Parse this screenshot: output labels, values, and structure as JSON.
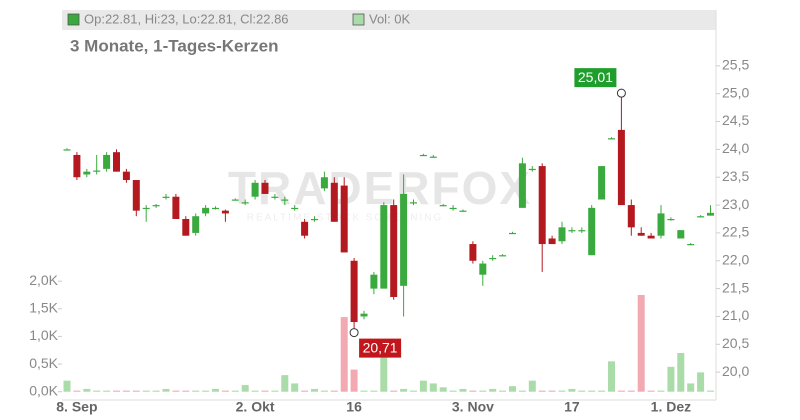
{
  "chart_data": {
    "type": "candlestick",
    "title": "3 Monate, 1-Tages-Kerzen",
    "legend": {
      "price": "Op:22.81, Hi:23, Lo:22.81, Cl:22.86",
      "volume": "Vol: 0K"
    },
    "watermark": "TRADERFOX",
    "watermark_sub": "REALTIME STOCK SCREENING",
    "categories": [
      null,
      "8. Sep",
      null,
      null,
      null,
      null,
      null,
      null,
      null,
      null,
      null,
      null,
      null,
      null,
      null,
      null,
      null,
      null,
      null,
      "2. Okt",
      null,
      null,
      null,
      null,
      null,
      null,
      null,
      null,
      null,
      "16",
      null,
      null,
      null,
      null,
      null,
      null,
      null,
      null,
      null,
      null,
      null,
      "3. Nov",
      null,
      null,
      null,
      null,
      null,
      null,
      null,
      null,
      null,
      "17",
      null,
      null,
      null,
      null,
      null,
      null,
      null,
      null,
      null,
      "1. Dez",
      null,
      null,
      null,
      null
    ],
    "open": [
      24.0,
      23.9,
      23.55,
      23.6,
      23.65,
      23.95,
      23.6,
      23.45,
      22.95,
      23.0,
      23.15,
      23.15,
      22.75,
      22.5,
      22.85,
      22.95,
      22.9,
      23.1,
      23.05,
      23.15,
      23.4,
      23.15,
      23.1,
      22.95,
      22.7,
      22.75,
      23.3,
      23.4,
      23.35,
      22.0,
      21.0,
      21.5,
      21.5,
      23.0,
      21.55,
      23.05,
      23.9,
      23.87,
      23.0,
      22.95,
      22.9,
      22.3,
      21.75,
      22.05,
      22.1,
      22.5,
      22.95,
      23.65,
      23.7,
      22.4,
      22.35,
      22.55,
      22.55,
      22.1,
      23.1,
      24.2,
      24.35,
      23.0,
      22.5,
      22.45,
      22.45,
      22.75,
      22.4,
      22.3,
      22.8,
      22.81
    ],
    "high": [
      24.02,
      23.95,
      23.65,
      23.9,
      23.95,
      24.0,
      23.65,
      23.45,
      23.0,
      23.02,
      23.2,
      23.2,
      22.8,
      22.85,
      23.0,
      22.98,
      22.92,
      23.12,
      23.1,
      23.45,
      23.45,
      23.2,
      23.15,
      23.0,
      22.75,
      22.8,
      23.6,
      23.5,
      23.5,
      22.05,
      21.1,
      21.8,
      23.05,
      23.1,
      23.55,
      23.1,
      23.92,
      23.9,
      23.02,
      23.0,
      22.92,
      22.35,
      22.0,
      22.1,
      22.12,
      22.52,
      23.85,
      23.7,
      23.75,
      22.45,
      22.7,
      22.6,
      22.6,
      23.0,
      23.7,
      24.22,
      25.01,
      23.1,
      22.6,
      22.5,
      23.0,
      22.78,
      22.55,
      22.32,
      22.82,
      23.0
    ],
    "low": [
      23.98,
      23.45,
      23.5,
      23.55,
      23.6,
      23.6,
      23.4,
      22.8,
      22.7,
      22.95,
      23.1,
      22.75,
      22.45,
      22.45,
      22.8,
      22.92,
      22.7,
      23.08,
      23.0,
      23.1,
      23.2,
      23.1,
      23.0,
      22.9,
      22.4,
      22.7,
      23.25,
      22.7,
      22.15,
      20.71,
      20.95,
      21.4,
      21.5,
      21.3,
      21.0,
      23.0,
      23.88,
      23.85,
      22.98,
      22.9,
      22.88,
      21.95,
      21.55,
      22.0,
      22.08,
      22.48,
      22.95,
      23.6,
      21.8,
      22.3,
      22.3,
      22.5,
      22.5,
      22.1,
      23.1,
      24.18,
      23.0,
      22.45,
      22.45,
      22.4,
      22.4,
      22.72,
      22.4,
      22.28,
      22.78,
      22.81
    ],
    "close": [
      24.0,
      23.5,
      23.6,
      23.62,
      23.9,
      23.6,
      23.45,
      22.9,
      22.95,
      23.0,
      23.15,
      22.75,
      22.45,
      22.8,
      22.95,
      22.95,
      22.85,
      23.1,
      23.05,
      23.4,
      23.2,
      23.15,
      23.1,
      22.95,
      22.45,
      22.75,
      23.5,
      22.7,
      22.15,
      20.9,
      21.05,
      21.75,
      23.0,
      21.35,
      23.2,
      23.05,
      23.9,
      23.87,
      23.0,
      22.95,
      22.9,
      22.0,
      21.95,
      22.05,
      22.1,
      22.5,
      23.75,
      23.65,
      22.3,
      22.3,
      22.6,
      22.55,
      22.55,
      22.95,
      23.7,
      24.2,
      23.0,
      22.6,
      22.45,
      22.4,
      22.85,
      22.75,
      22.55,
      22.3,
      22.8,
      22.86
    ],
    "volume": [
      0.2,
      0.02,
      0.05,
      0.02,
      0.02,
      0.02,
      0.02,
      0.02,
      0.02,
      0.02,
      0.05,
      0.02,
      0.02,
      0.02,
      0.02,
      0.05,
      0.02,
      0.02,
      0.12,
      0.02,
      0.02,
      0.02,
      0.3,
      0.15,
      0.02,
      0.05,
      0.02,
      0.02,
      1.35,
      0.4,
      0.02,
      0.02,
      0.65,
      0.02,
      0.05,
      0.02,
      0.2,
      0.15,
      0.08,
      0.02,
      0.05,
      0.02,
      0.02,
      0.05,
      0.02,
      0.1,
      0.02,
      0.2,
      0.02,
      0.02,
      0.02,
      0.05,
      0.02,
      0.02,
      0.02,
      0.55,
      0.02,
      0.02,
      1.75,
      0.02,
      0.02,
      0.45,
      0.7,
      0.15,
      0.35,
      0.02
    ],
    "annotations": [
      {
        "text": "25,01",
        "value": 25.01,
        "color": "#1f9e2c"
      },
      {
        "text": "20,71",
        "value": 20.71,
        "color": "#c0161c"
      }
    ],
    "ylim": [
      19.5,
      26.0
    ],
    "yticks": [
      {
        "value": 20.0,
        "label": "20,0"
      },
      {
        "value": 20.5,
        "label": "20,5"
      },
      {
        "value": 21.0,
        "label": "21,0"
      },
      {
        "value": 21.5,
        "label": "21,5"
      },
      {
        "value": 22.0,
        "label": "22,0"
      },
      {
        "value": 22.5,
        "label": "22,5"
      },
      {
        "value": 23.0,
        "label": "23,0"
      },
      {
        "value": 23.5,
        "label": "23,5"
      },
      {
        "value": 24.0,
        "label": "24,0"
      },
      {
        "value": 24.5,
        "label": "24,5"
      },
      {
        "value": 25.0,
        "label": "25,0"
      },
      {
        "value": 25.5,
        "label": "25,5"
      }
    ],
    "y2lim": [
      -0.15,
      6.4
    ],
    "y2ticks": [
      {
        "value": 0,
        "label": "0,0K"
      },
      {
        "value": 0.5,
        "label": "0,5K"
      },
      {
        "value": 1.0,
        "label": "1,0K"
      },
      {
        "value": 1.5,
        "label": "1,5K"
      },
      {
        "value": 2.0,
        "label": "2,0K"
      }
    ],
    "colors": {
      "up": "#3aaa3f",
      "down": "#b4191f",
      "volume_up": "#a9dca9",
      "volume_down": "#f2a9b2"
    }
  }
}
